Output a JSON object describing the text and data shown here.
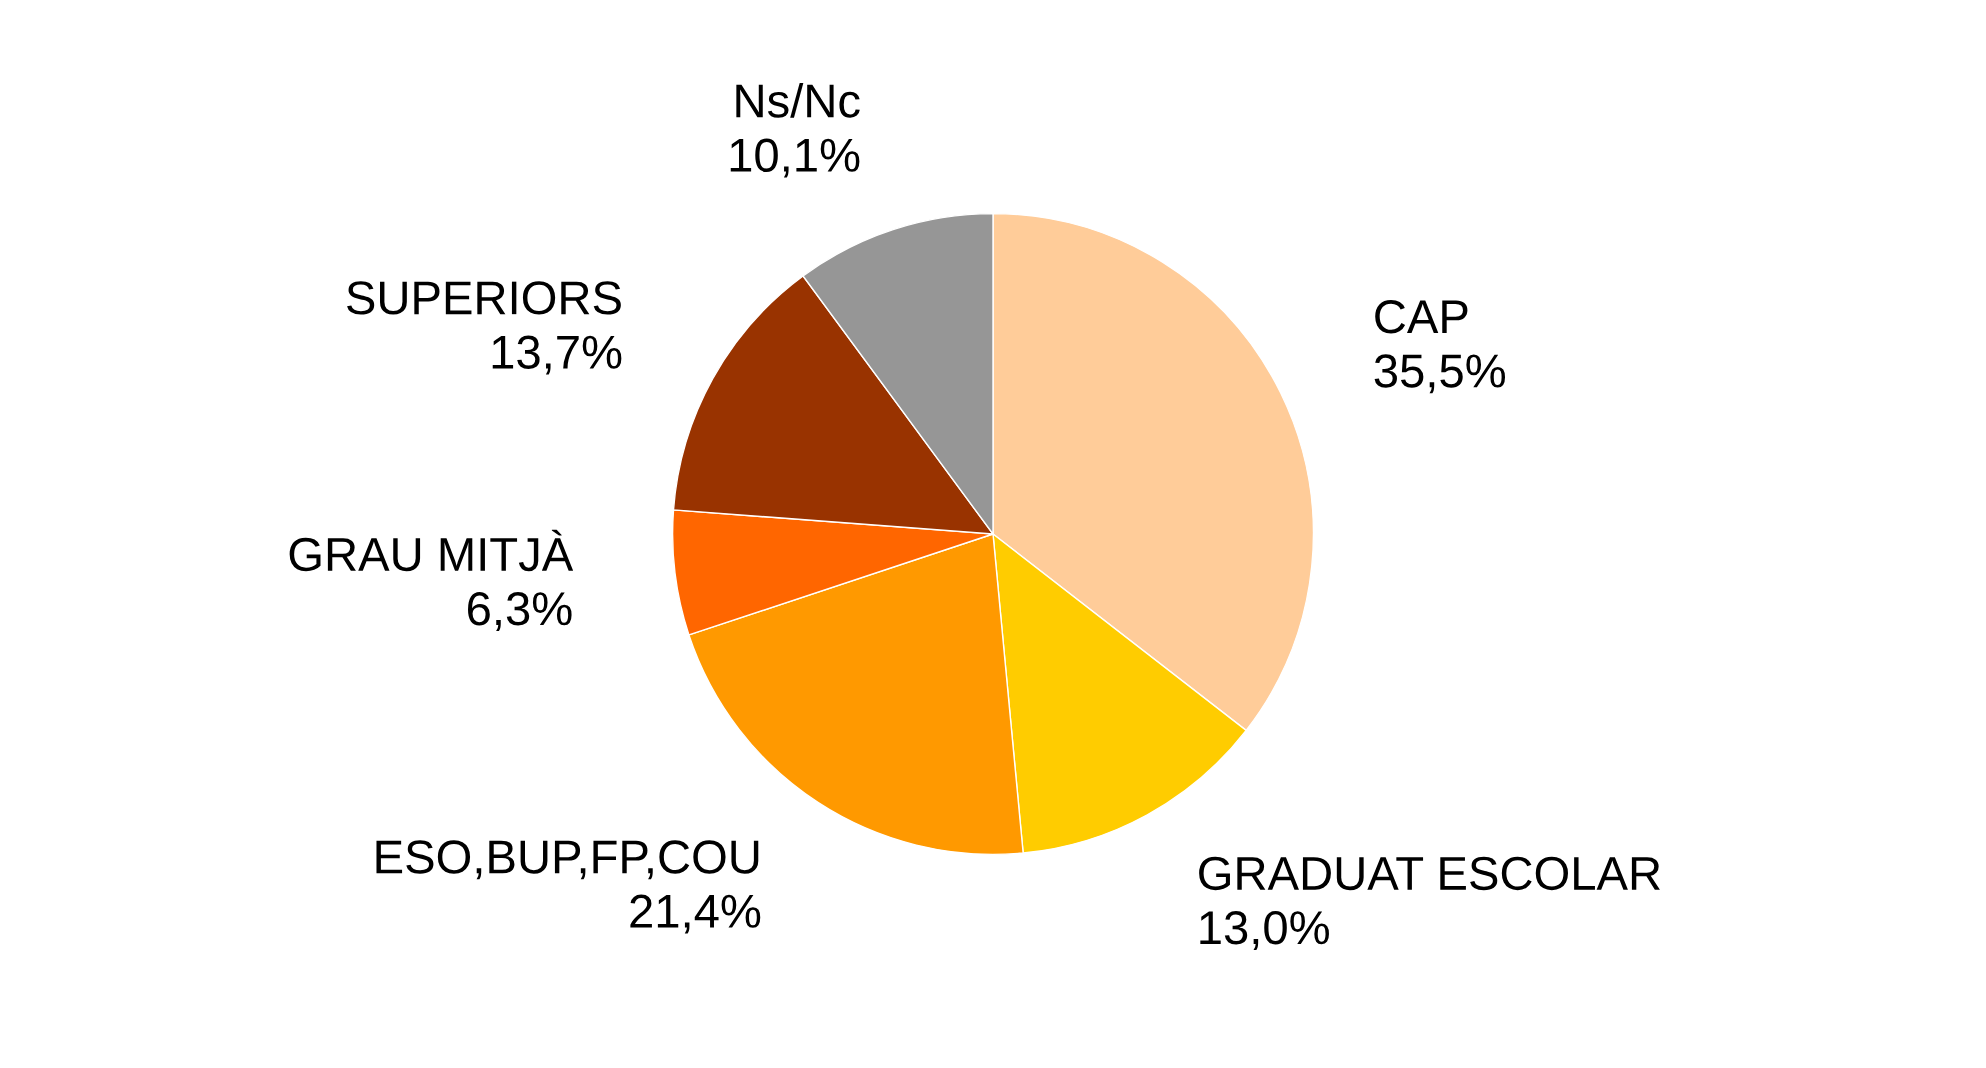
{
  "chart_data": {
    "type": "pie",
    "categories": [
      "CAP",
      "GRADUAT ESCOLAR",
      "ESO,BUP,FP,COU",
      "GRAU MITJÀ",
      "SUPERIORS",
      "Ns/Nc"
    ],
    "values": [
      35.5,
      13.0,
      21.4,
      6.3,
      13.7,
      10.1
    ],
    "value_labels": [
      "35,5%",
      "13,0%",
      "21,4%",
      "6,3%",
      "13,7%",
      "10,1%"
    ],
    "colors": [
      "#ffcc99",
      "#ffcc00",
      "#ff9900",
      "#ff6600",
      "#993300",
      "#969696"
    ],
    "legend": false
  }
}
